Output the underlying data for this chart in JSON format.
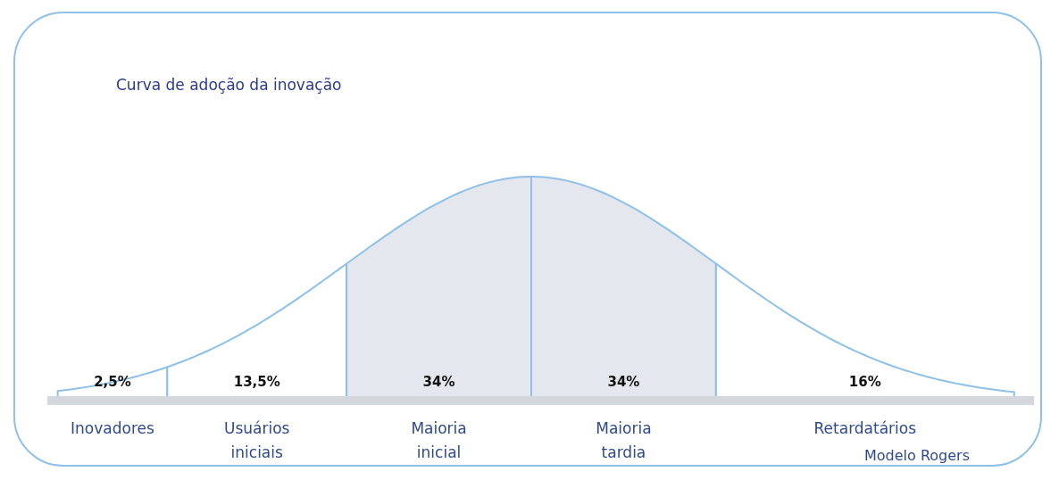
{
  "chart_data": {
    "type": "other",
    "title": "Curva de adoção da inovação",
    "categories": [
      "Inovadores",
      "Usuários iniciais",
      "Maioria inicial",
      "Maioria tardia",
      "Retardatários"
    ],
    "values": [
      2.5,
      13.5,
      34,
      34,
      16
    ],
    "value_labels": [
      "2,5%",
      "13,5%",
      "34%",
      "34%",
      "16%"
    ],
    "colors": [
      "#ffffff",
      "#ffffff",
      "#e4e8ee",
      "#e4e8ee",
      "#ffffff"
    ],
    "annotations": [
      "Modelo Rogers"
    ]
  }
}
